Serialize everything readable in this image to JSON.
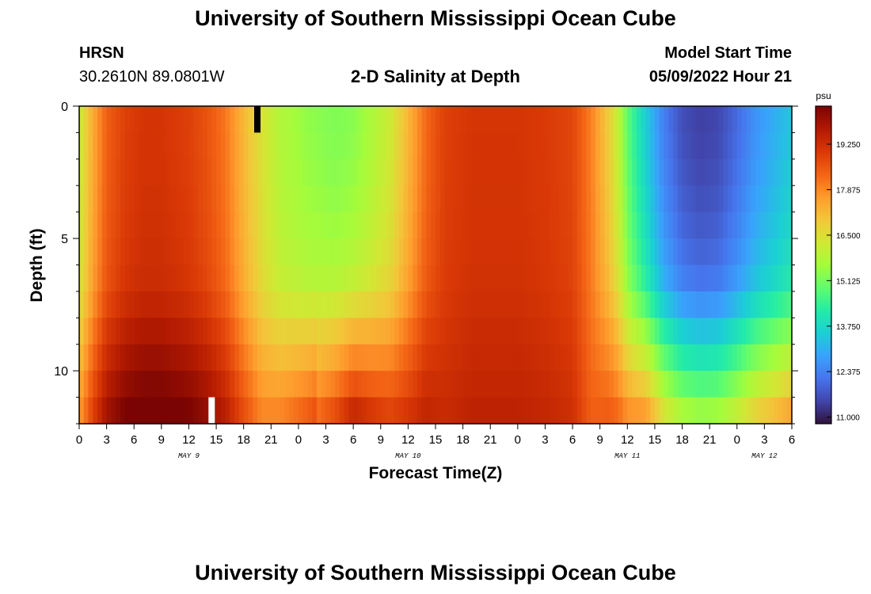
{
  "header": {
    "title": "University of Southern Mississippi Ocean Cube",
    "station": "HRSN",
    "coords": "30.2610N  89.0801W",
    "subtitle": "2-D Salinity at Depth",
    "model_start_label": "Model Start Time",
    "model_start_value": "05/09/2022 Hour 21"
  },
  "footer": {
    "title": "University of Southern Mississippi Ocean Cube"
  },
  "chart_data": {
    "type": "heatmap",
    "title": "2-D Salinity at Depth",
    "xlabel": "Forecast Time(Z)",
    "ylabel": "Depth (ft)",
    "x_hours_range": [
      0,
      78
    ],
    "x_tick_labels": [
      "0",
      "3",
      "6",
      "9",
      "12",
      "15",
      "18",
      "21",
      "0",
      "3",
      "6",
      "9",
      "12",
      "15",
      "18",
      "21",
      "0",
      "3",
      "6",
      "9",
      "12",
      "15",
      "18",
      "21",
      "0",
      "3",
      "6"
    ],
    "date_labels": [
      {
        "text": "MAY 9",
        "hour": 12
      },
      {
        "text": "MAY 10",
        "hour": 36
      },
      {
        "text": "MAY 11",
        "hour": 60
      },
      {
        "text": "MAY 12",
        "hour": 75
      }
    ],
    "y_range": [
      0,
      12
    ],
    "y_tick_labels": [
      "0",
      "5",
      "10"
    ],
    "y_tick_values": [
      0,
      5,
      10
    ],
    "colorbar": {
      "unit": "psu",
      "min": 10.8,
      "max": 20.4,
      "tick_labels": [
        "19.250",
        "17.875",
        "16.500",
        "15.125",
        "13.750",
        "12.375",
        "11.000"
      ],
      "tick_values": [
        19.25,
        17.875,
        16.5,
        15.125,
        13.75,
        12.375,
        11.0
      ],
      "colors": [
        "#30123b",
        "#4145ab",
        "#4675ed",
        "#39a2fc",
        "#1bcfd4",
        "#24eca6",
        "#61fc6c",
        "#a4fc3b",
        "#d1e834",
        "#f3c63a",
        "#fe9b2d",
        "#f36315",
        "#d93806",
        "#b11901",
        "#7a0403"
      ]
    },
    "depth_levels": 12,
    "surface_profile": [
      [
        0,
        16.1
      ],
      [
        1.5,
        17.4
      ],
      [
        3,
        18.4
      ],
      [
        5,
        18.9
      ],
      [
        7,
        19.1
      ],
      [
        9,
        19.1
      ],
      [
        12,
        18.9
      ],
      [
        14,
        18.6
      ],
      [
        16,
        18.1
      ],
      [
        18,
        17.2
      ],
      [
        20,
        16.4
      ],
      [
        22,
        15.8
      ],
      [
        25,
        15.4
      ],
      [
        28,
        15.2
      ],
      [
        30,
        15.3
      ],
      [
        32,
        15.7
      ],
      [
        34,
        16.2
      ],
      [
        36,
        17.2
      ],
      [
        38,
        18.3
      ],
      [
        40,
        18.9
      ],
      [
        43,
        19.1
      ],
      [
        48,
        19.1
      ],
      [
        51,
        19.0
      ],
      [
        54,
        18.8
      ],
      [
        56,
        18.0
      ],
      [
        58,
        16.8
      ],
      [
        59,
        16.0
      ],
      [
        60,
        14.9
      ],
      [
        62,
        13.5
      ],
      [
        64,
        12.3
      ],
      [
        66,
        11.6
      ],
      [
        68,
        11.4
      ],
      [
        70,
        11.5
      ],
      [
        72,
        12.0
      ],
      [
        74,
        12.6
      ],
      [
        76,
        13.0
      ],
      [
        78,
        13.4
      ]
    ],
    "depth_offsets": [
      [
        0,
        0.0
      ],
      [
        1,
        0.05
      ],
      [
        2,
        0.1
      ],
      [
        3,
        0.2
      ],
      [
        4,
        0.3
      ],
      [
        5,
        0.45
      ],
      [
        6,
        0.6
      ],
      [
        7,
        0.9
      ],
      [
        8,
        1.6
      ],
      [
        9,
        2.3
      ],
      [
        10,
        2.9
      ],
      [
        11,
        3.7
      ],
      [
        12,
        4.4
      ]
    ],
    "missing_cells": [
      {
        "hour": 14.5,
        "depth_level": 11,
        "color": "#ffffff"
      },
      {
        "hour": 19.5,
        "depth_level": 0,
        "color": "#000000"
      }
    ]
  }
}
